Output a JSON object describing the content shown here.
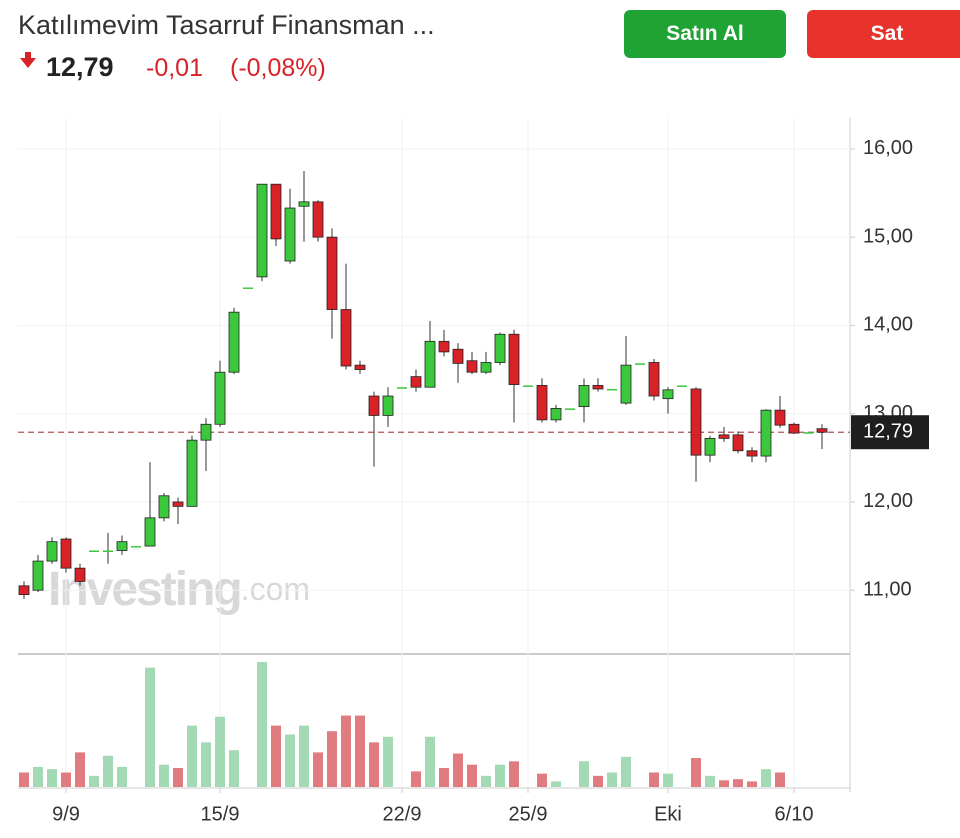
{
  "header": {
    "title": "Katılımevim Tasarruf Finansman ...",
    "price": "12,79",
    "change": "-0,01",
    "change_pct": "(-0,08%)",
    "buy": "Satın Al",
    "sell": "Sat"
  },
  "chart_data": {
    "type": "candlestick",
    "categories": [
      null,
      null,
      null,
      "9/9",
      null,
      null,
      null,
      null,
      null,
      null,
      null,
      null,
      null,
      null,
      "15/9",
      null,
      null,
      null,
      null,
      null,
      null,
      null,
      null,
      null,
      null,
      null,
      null,
      "22/9",
      null,
      null,
      null,
      null,
      null,
      null,
      null,
      null,
      "25/9",
      null,
      null,
      null,
      null,
      null,
      null,
      null,
      null,
      null,
      "Eki",
      null,
      null,
      null,
      null,
      null,
      null,
      null,
      null,
      "6/10",
      null,
      null
    ],
    "open": [
      11.05,
      11.0,
      11.33,
      11.58,
      11.25,
      11.45,
      11.45,
      11.45,
      11.5,
      11.5,
      11.82,
      12.0,
      11.95,
      12.7,
      12.88,
      13.47,
      14.43,
      14.55,
      15.6,
      14.73,
      15.35,
      15.4,
      15.0,
      14.18,
      13.55,
      13.2,
      12.98,
      13.3,
      13.42,
      13.3,
      13.82,
      13.73,
      13.6,
      13.47,
      13.58,
      13.9,
      13.32,
      13.32,
      12.93,
      13.06,
      13.08,
      13.32,
      13.28,
      13.12,
      13.57,
      13.58,
      13.17,
      13.32,
      13.28,
      12.53,
      12.76,
      12.76,
      12.58,
      12.52,
      13.04,
      12.88,
      12.79,
      12.83
    ],
    "high": [
      11.1,
      11.4,
      11.6,
      11.6,
      11.3,
      11.45,
      11.65,
      11.62,
      11.5,
      12.45,
      12.1,
      12.05,
      12.75,
      12.95,
      13.6,
      14.2,
      14.43,
      15.6,
      15.6,
      15.55,
      15.75,
      15.42,
      15.1,
      14.7,
      13.6,
      13.25,
      13.3,
      13.3,
      13.5,
      14.05,
      13.95,
      13.8,
      13.7,
      13.7,
      13.92,
      13.95,
      13.32,
      13.4,
      13.1,
      13.06,
      13.4,
      13.4,
      13.28,
      13.88,
      13.57,
      13.62,
      13.3,
      13.32,
      13.3,
      12.75,
      12.85,
      12.8,
      12.62,
      13.05,
      13.2,
      12.9,
      12.79,
      12.88
    ],
    "low": [
      10.9,
      10.98,
      11.3,
      11.2,
      11.05,
      11.45,
      11.3,
      11.4,
      11.5,
      11.5,
      11.78,
      11.75,
      11.95,
      12.35,
      12.85,
      13.45,
      14.43,
      14.5,
      14.9,
      14.7,
      14.95,
      14.95,
      13.85,
      13.5,
      13.45,
      12.4,
      12.85,
      13.3,
      13.25,
      13.3,
      13.65,
      13.35,
      13.45,
      13.45,
      13.55,
      12.9,
      13.32,
      12.9,
      12.9,
      13.06,
      12.9,
      13.25,
      13.28,
      13.1,
      13.57,
      13.15,
      13.0,
      13.32,
      12.23,
      12.45,
      12.68,
      12.55,
      12.45,
      12.45,
      12.84,
      12.77,
      12.79,
      12.6
    ],
    "close": [
      10.95,
      11.33,
      11.55,
      11.25,
      11.1,
      11.45,
      11.45,
      11.55,
      11.5,
      11.82,
      12.07,
      11.95,
      12.7,
      12.88,
      13.47,
      14.15,
      14.43,
      15.6,
      14.98,
      15.33,
      15.4,
      15.0,
      14.18,
      13.54,
      13.5,
      12.98,
      13.2,
      13.3,
      13.3,
      13.82,
      13.7,
      13.57,
      13.47,
      13.58,
      13.9,
      13.33,
      13.32,
      12.93,
      13.06,
      13.06,
      13.32,
      13.28,
      13.28,
      13.55,
      13.57,
      13.2,
      13.27,
      13.32,
      12.53,
      12.72,
      12.72,
      12.58,
      12.52,
      13.04,
      12.87,
      12.78,
      12.79,
      12.79
    ],
    "volume": [
      13,
      18,
      16,
      13,
      31,
      10,
      28,
      18,
      0,
      107,
      20,
      17,
      55,
      40,
      63,
      33,
      0,
      112,
      55,
      47,
      55,
      31,
      50,
      64,
      64,
      40,
      45,
      0,
      14,
      45,
      17,
      30,
      20,
      10,
      20,
      23,
      0,
      12,
      5,
      0,
      23,
      10,
      13,
      27,
      0,
      13,
      12,
      0,
      26,
      10,
      6,
      7,
      5,
      16,
      13,
      0,
      0,
      0
    ],
    "up_color": "#3cc83c",
    "down_color": "#d92228",
    "up_volume_color": "#a3d9b4",
    "down_volume_color": "#e07b80",
    "ylim": [
      10.3,
      16.35
    ],
    "yticks": [
      {
        "value": 11,
        "label": "11,00"
      },
      {
        "value": 12,
        "label": "12,00"
      },
      {
        "value": 13,
        "label": "13,00"
      },
      {
        "value": 14,
        "label": "14,00"
      },
      {
        "value": 15,
        "label": "15,00"
      },
      {
        "value": 16,
        "label": "16,00"
      }
    ],
    "last_price": {
      "value": 12.79,
      "label": "12,79"
    },
    "grid": true,
    "watermark": [
      "Investing",
      ".com"
    ]
  }
}
